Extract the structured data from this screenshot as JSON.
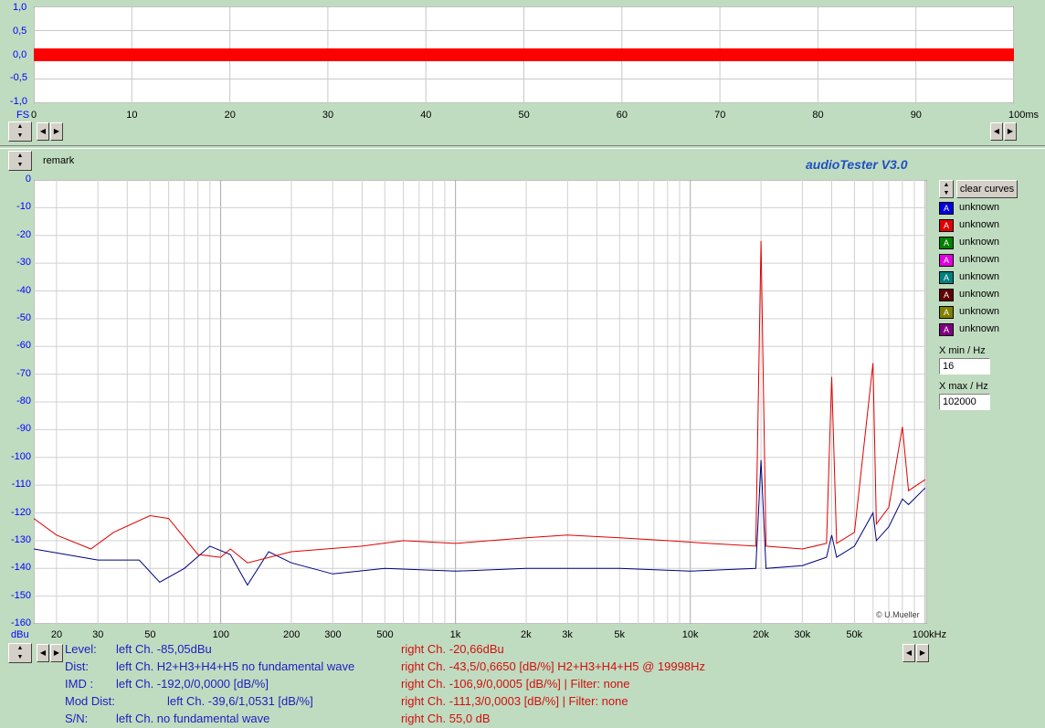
{
  "colors": {
    "bg": "#c0dcc0",
    "left_channel": "#000080",
    "right_channel": "#e00000",
    "title": "#2050c0"
  },
  "title": "audioTester  V3.0",
  "remark": "remark",
  "copyright": "© U.Mueller",
  "scope": {
    "y_ticks": [
      "1,0",
      "0,5",
      "0,0",
      "-0,5",
      "-1,0"
    ],
    "fs_label": "FS",
    "x_ticks": [
      "0",
      "10",
      "20",
      "30",
      "40",
      "50",
      "60",
      "70",
      "80",
      "90",
      "100ms"
    ]
  },
  "spectrum": {
    "y_ticks": [
      "0",
      "-10",
      "-20",
      "-30",
      "-40",
      "-50",
      "-60",
      "-70",
      "-80",
      "-90",
      "-100",
      "-110",
      "-120",
      "-130",
      "-140",
      "-150",
      "-160"
    ],
    "y_unit": "dBu",
    "x_ticks": [
      {
        "f": 20,
        "label": "20"
      },
      {
        "f": 30,
        "label": "30"
      },
      {
        "f": 50,
        "label": "50"
      },
      {
        "f": 100,
        "label": "100"
      },
      {
        "f": 200,
        "label": "200"
      },
      {
        "f": 300,
        "label": "300"
      },
      {
        "f": 500,
        "label": "500"
      },
      {
        "f": 1000,
        "label": "1k"
      },
      {
        "f": 2000,
        "label": "2k"
      },
      {
        "f": 3000,
        "label": "3k"
      },
      {
        "f": 5000,
        "label": "5k"
      },
      {
        "f": 10000,
        "label": "10k"
      },
      {
        "f": 20000,
        "label": "20k"
      },
      {
        "f": 30000,
        "label": "30k"
      },
      {
        "f": 50000,
        "label": "50k"
      },
      {
        "f": 100000,
        "label": "100kHz"
      }
    ]
  },
  "chart_data": {
    "type": "line",
    "xlabel": "",
    "ylabel": "dBu",
    "xlim": [
      16,
      102000
    ],
    "ylim": [
      -160,
      0
    ],
    "x_scale": "log",
    "grid": true,
    "series": [
      {
        "name": "left Ch.",
        "color": "#000080",
        "points": [
          [
            16,
            -133
          ],
          [
            30,
            -137
          ],
          [
            45,
            -137
          ],
          [
            55,
            -145
          ],
          [
            70,
            -140
          ],
          [
            90,
            -132
          ],
          [
            110,
            -135
          ],
          [
            130,
            -146
          ],
          [
            160,
            -134
          ],
          [
            200,
            -138
          ],
          [
            300,
            -142
          ],
          [
            500,
            -140
          ],
          [
            1000,
            -141
          ],
          [
            2000,
            -140
          ],
          [
            5000,
            -140
          ],
          [
            10000,
            -141
          ],
          [
            19000,
            -140
          ],
          [
            19998,
            -101
          ],
          [
            21000,
            -140
          ],
          [
            30000,
            -139
          ],
          [
            38000,
            -136
          ],
          [
            39996,
            -128
          ],
          [
            42000,
            -136
          ],
          [
            50000,
            -132
          ],
          [
            59994,
            -120
          ],
          [
            62000,
            -130
          ],
          [
            70000,
            -125
          ],
          [
            79992,
            -115
          ],
          [
            85000,
            -117
          ],
          [
            100000,
            -111
          ]
        ]
      },
      {
        "name": "right Ch.",
        "color": "#e00000",
        "points": [
          [
            16,
            -122
          ],
          [
            20,
            -128
          ],
          [
            28,
            -133
          ],
          [
            35,
            -127
          ],
          [
            50,
            -121
          ],
          [
            60,
            -122
          ],
          [
            80,
            -135
          ],
          [
            100,
            -136
          ],
          [
            110,
            -133
          ],
          [
            130,
            -138
          ],
          [
            200,
            -134
          ],
          [
            400,
            -132
          ],
          [
            600,
            -130
          ],
          [
            1000,
            -131
          ],
          [
            2000,
            -129
          ],
          [
            3000,
            -128
          ],
          [
            5000,
            -129
          ],
          [
            8000,
            -130
          ],
          [
            12000,
            -131
          ],
          [
            19000,
            -132
          ],
          [
            19998,
            -22
          ],
          [
            21000,
            -132
          ],
          [
            30000,
            -133
          ],
          [
            38000,
            -131
          ],
          [
            39996,
            -71
          ],
          [
            42000,
            -131
          ],
          [
            50000,
            -127
          ],
          [
            59994,
            -66
          ],
          [
            62000,
            -124
          ],
          [
            70000,
            -118
          ],
          [
            79992,
            -89
          ],
          [
            85000,
            -112
          ],
          [
            100000,
            -108
          ]
        ]
      }
    ]
  },
  "legend": {
    "clear_label": "clear curves",
    "items": [
      {
        "label": "unknown",
        "color": "#0000e0"
      },
      {
        "label": "unknown",
        "color": "#e00000"
      },
      {
        "label": "unknown",
        "color": "#008000"
      },
      {
        "label": "unknown",
        "color": "#e000e0"
      },
      {
        "label": "unknown",
        "color": "#008080"
      },
      {
        "label": "unknown",
        "color": "#600000"
      },
      {
        "label": "unknown",
        "color": "#808000"
      },
      {
        "label": "unknown",
        "color": "#800080"
      }
    ],
    "xmin_label": "X min / Hz",
    "xmin_value": "16",
    "xmax_label": "X max / Hz",
    "xmax_value": "102000"
  },
  "results": [
    {
      "key": "Level:",
      "left": "left Ch. -85,05dBu",
      "right": "right Ch. -20,66dBu"
    },
    {
      "key": "Dist:",
      "left": "left Ch. H2+H3+H4+H5 no fundamental wave",
      "right": "right Ch. -43,5/0,6650 [dB/%] H2+H3+H4+H5 @ 19998Hz"
    },
    {
      "key": "IMD  :",
      "left": "left Ch. -192,0/0,0000 [dB/%]",
      "right": "right Ch. -106,9/0,0005 [dB/%] |   Filter: none"
    },
    {
      "key": "Mod Dist:",
      "left": "left Ch. -39,6/1,0531 [dB/%]",
      "right": "right Ch. -111,3/0,0003 [dB/%] |   Filter: none"
    },
    {
      "key": "S/N:",
      "left": "left Ch.  no fundamental wave",
      "right": "right Ch. 55,0 dB"
    }
  ]
}
